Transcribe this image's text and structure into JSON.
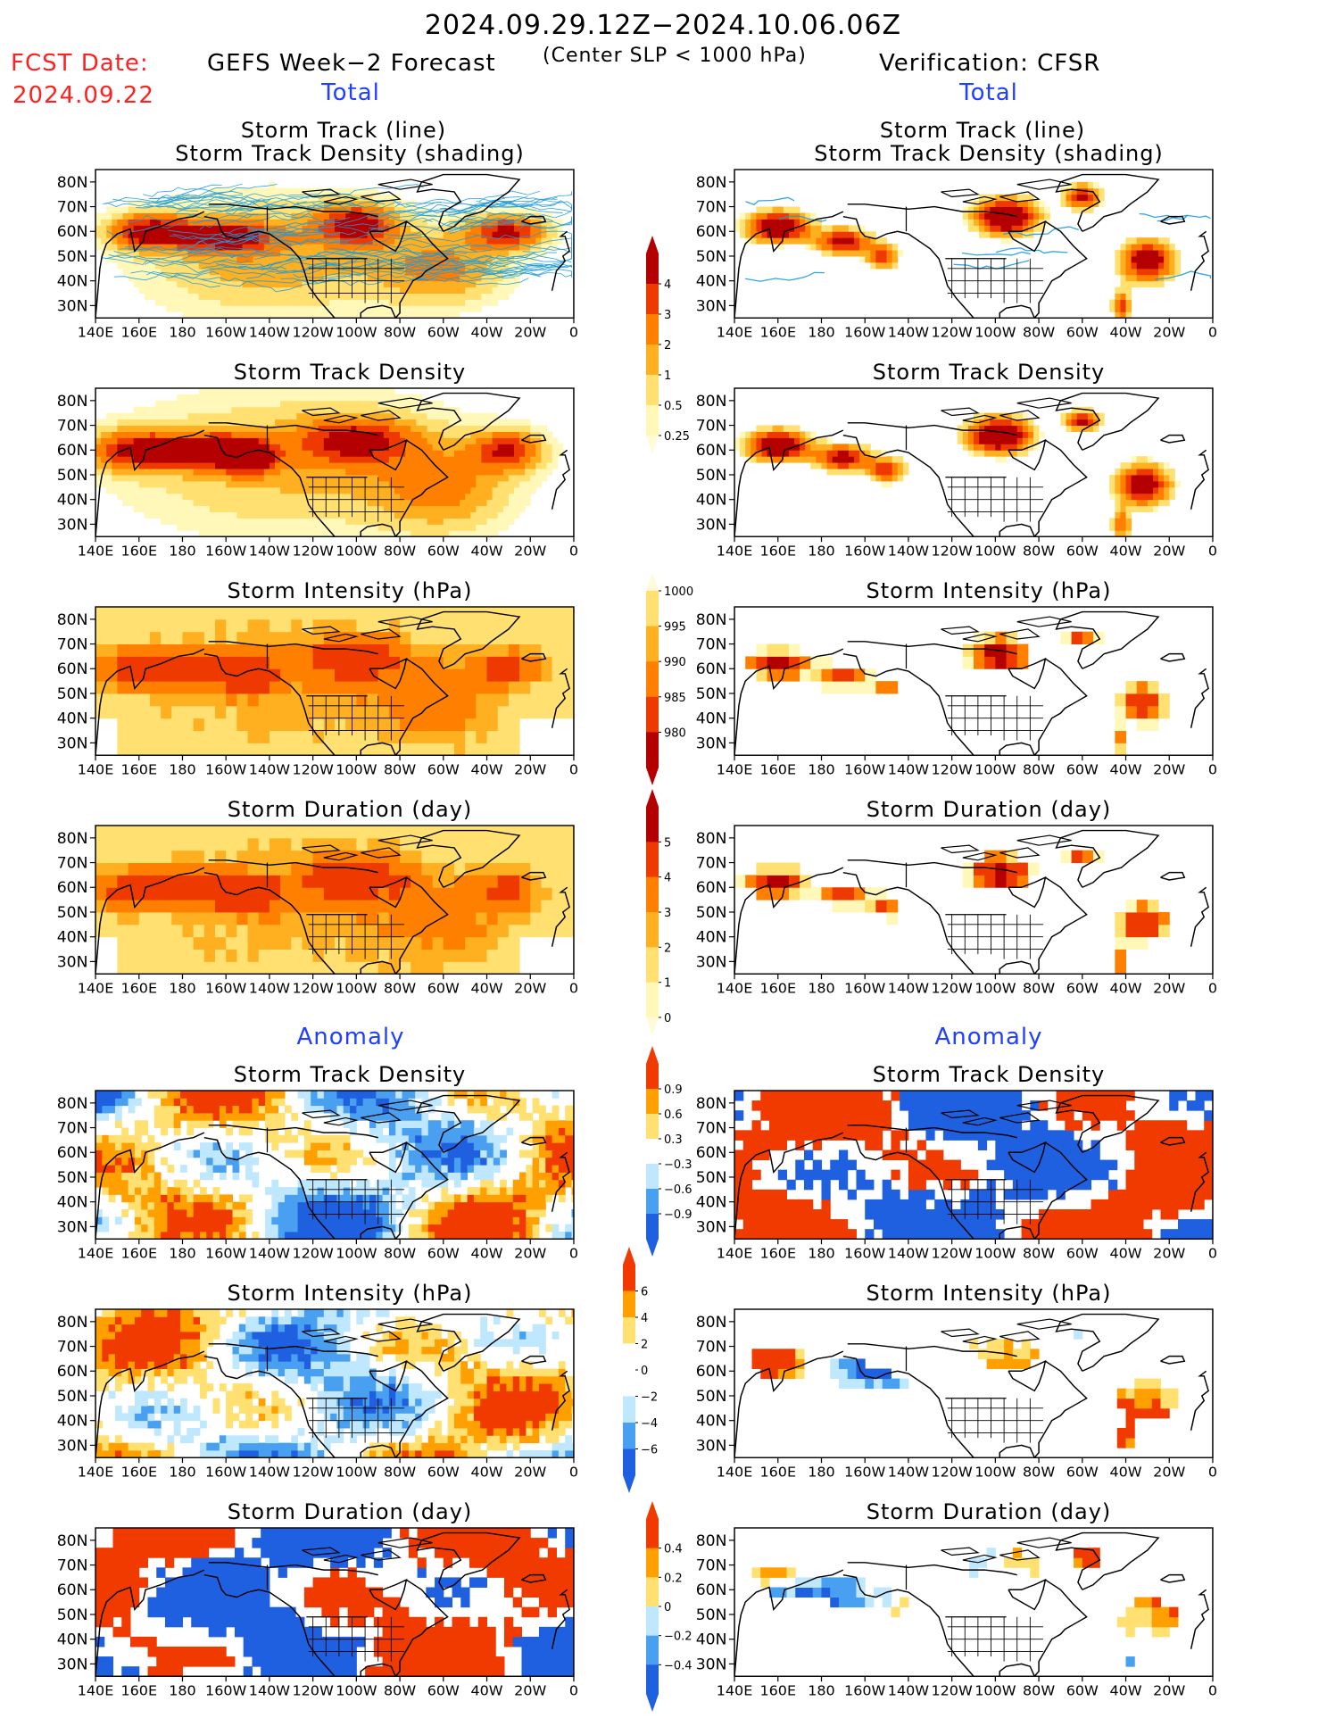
{
  "header": {
    "period": "2024.09.29.12Z−2024.10.06.06Z",
    "fcst_label": "FCST Date:",
    "fcst_date": "2024.09.22",
    "model": "GEFS Week−2 Forecast",
    "criterion": "(Center SLP < 1000 hPa)",
    "verification": "Verification: CFSR",
    "total_label": "Total",
    "anomaly_label": "Anomaly"
  },
  "axes": {
    "lon_labels": [
      "140E",
      "160E",
      "180",
      "160W",
      "140W",
      "120W",
      "100W",
      "80W",
      "60W",
      "40W",
      "20W",
      "0"
    ],
    "lat_labels": [
      "80N",
      "70N",
      "60N",
      "50N",
      "40N",
      "30N"
    ]
  },
  "panels": {
    "track_title_1": "Storm Track (line)",
    "track_title_2": "Storm Track Density (shading)",
    "density": "Storm Track Density",
    "intensity": "Storm Intensity (hPa)",
    "duration": "Storm Duration (day)"
  },
  "colorbars": {
    "density_total": [
      "4",
      "3",
      "2",
      "1",
      "0.5",
      "0.25"
    ],
    "intensity_total": [
      "1000",
      "995",
      "990",
      "985",
      "980"
    ],
    "duration_total": [
      "5",
      "4",
      "3",
      "2",
      "1",
      "0"
    ],
    "density_anom": [
      "0.9",
      "0.6",
      "0.3",
      "−0.3",
      "−0.6",
      "−0.9"
    ],
    "intensity_anom": [
      "6",
      "4",
      "2",
      "0",
      "−2",
      "−4",
      "−6"
    ],
    "duration_anom": [
      "0.4",
      "0.2",
      "0",
      "−0.2",
      "−0.4"
    ]
  },
  "colors": {
    "seq_total": [
      "#fff8b8",
      "#ffe070",
      "#ffb020",
      "#ff8000",
      "#ee3a00",
      "#b40000"
    ],
    "div_anom": [
      "#1e60e0",
      "#4aa0f0",
      "#bfe8ff",
      "#ffffff",
      "#ffe070",
      "#ffa000",
      "#f03a00"
    ]
  }
}
